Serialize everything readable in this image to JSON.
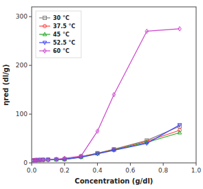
{
  "chart_data": {
    "type": "line",
    "xlabel": "Concentration (g/dl)",
    "ylabel": "ηred (dl/g)",
    "xlim": [
      0.0,
      1.0
    ],
    "ylim": [
      0,
      320
    ],
    "xticks": [
      {
        "value": 0.0,
        "label": "0.0"
      },
      0.2,
      0.4,
      0.6,
      0.8,
      {
        "value": 1.0,
        "label": "1.0"
      }
    ],
    "yticks": [
      0,
      100,
      200,
      300
    ],
    "grid": false,
    "legend": "upper left",
    "series": [
      {
        "name": "30 °C",
        "color": "#808080",
        "marker": "square",
        "x": [
          0.01,
          0.02,
          0.03,
          0.05,
          0.07,
          0.1,
          0.15,
          0.2,
          0.3,
          0.4,
          0.5,
          0.7,
          0.9
        ],
        "values": [
          5.5,
          5.8,
          6.0,
          6.2,
          6.5,
          6.8,
          7.2,
          7.8,
          13.0,
          20.0,
          28.0,
          46.0,
          75.0
        ]
      },
      {
        "name": "37.5 °C",
        "color": "#ff4444",
        "marker": "circle",
        "x": [
          0.01,
          0.02,
          0.03,
          0.05,
          0.07,
          0.1,
          0.15,
          0.2,
          0.3,
          0.4,
          0.5,
          0.7,
          0.9
        ],
        "values": [
          5.2,
          5.5,
          5.8,
          6.0,
          6.3,
          6.6,
          7.0,
          7.5,
          12.5,
          19.5,
          27.5,
          44.0,
          67.0
        ]
      },
      {
        "name": "45 °C",
        "color": "#22aa22",
        "marker": "triangle-up",
        "x": [
          0.01,
          0.02,
          0.03,
          0.05,
          0.07,
          0.1,
          0.15,
          0.2,
          0.3,
          0.4,
          0.5,
          0.7,
          0.9
        ],
        "values": [
          5.0,
          5.3,
          5.5,
          5.8,
          6.1,
          6.4,
          6.8,
          7.3,
          12.0,
          19.0,
          26.5,
          42.0,
          62.0
        ]
      },
      {
        "name": "52.5 °C",
        "color": "#4444ff",
        "marker": "triangle-down",
        "x": [
          0.01,
          0.02,
          0.03,
          0.05,
          0.07,
          0.1,
          0.15,
          0.2,
          0.3,
          0.4,
          0.5,
          0.7,
          0.9
        ],
        "values": [
          4.8,
          5.1,
          5.3,
          5.6,
          5.9,
          6.2,
          6.6,
          7.1,
          11.5,
          18.5,
          26.0,
          40.0,
          78.0
        ]
      },
      {
        "name": "60 °C",
        "color": "#cc44cc",
        "marker": "diamond",
        "x": [
          0.01,
          0.02,
          0.03,
          0.05,
          0.07,
          0.1,
          0.15,
          0.2,
          0.3,
          0.4,
          0.5,
          0.7,
          0.9
        ],
        "values": [
          5.0,
          5.3,
          5.6,
          5.9,
          6.2,
          6.6,
          7.5,
          9.5,
          14.0,
          65.0,
          140.0,
          270.0,
          275.0
        ]
      }
    ]
  }
}
